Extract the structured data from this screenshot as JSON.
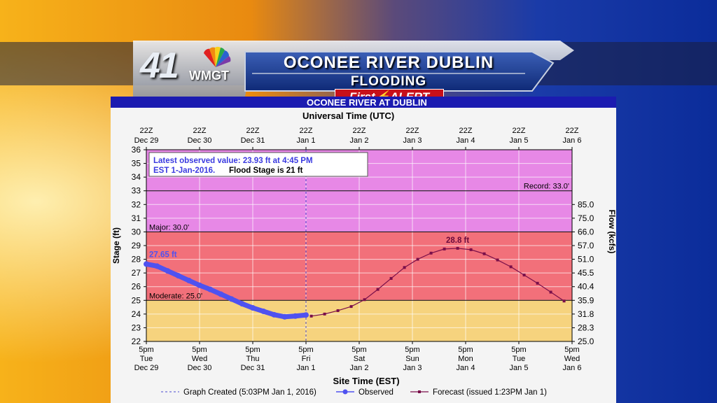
{
  "banner": {
    "channel_number": "41",
    "call_sign": "WMGT",
    "title": "OCONEE RIVER DUBLIN",
    "subtitle": "FLOODING",
    "alert_first": "First",
    "alert_word": "ALERT",
    "icon": "nbc-peacock-icon",
    "alert_color": "#c8101a"
  },
  "chart_data": {
    "type": "line",
    "title": "OCONEE RIVER AT DUBLIN",
    "top_axis_title": "Universal Time (UTC)",
    "top_ticks": [
      [
        "22Z",
        "Dec 29"
      ],
      [
        "22Z",
        "Dec 30"
      ],
      [
        "22Z",
        "Dec 31"
      ],
      [
        "22Z",
        "Jan 1"
      ],
      [
        "22Z",
        "Jan 2"
      ],
      [
        "22Z",
        "Jan 3"
      ],
      [
        "22Z",
        "Jan 4"
      ],
      [
        "22Z",
        "Jan 5"
      ],
      [
        "22Z",
        "Jan 6"
      ]
    ],
    "bottom_axis_title": "Site Time (EST)",
    "bottom_ticks": [
      [
        "5pm",
        "Tue",
        "Dec 29"
      ],
      [
        "5pm",
        "Wed",
        "Dec 30"
      ],
      [
        "5pm",
        "Thu",
        "Dec 31"
      ],
      [
        "5pm",
        "Fri",
        "Jan 1"
      ],
      [
        "5pm",
        "Sat",
        "Jan 2"
      ],
      [
        "5pm",
        "Sun",
        "Jan 3"
      ],
      [
        "5pm",
        "Mon",
        "Jan 4"
      ],
      [
        "5pm",
        "Tue",
        "Jan 5"
      ],
      [
        "5pm",
        "Wed",
        "Jan 6"
      ]
    ],
    "ylabel": "Stage (ft)",
    "ylim": [
      22,
      36
    ],
    "y_ticks": [
      22,
      23,
      24,
      25,
      26,
      27,
      28,
      29,
      30,
      31,
      32,
      33,
      34,
      35,
      36
    ],
    "y2label": "Flow (kcfs)",
    "y2_ticks": [
      {
        "stage": 22,
        "label": "25.0"
      },
      {
        "stage": 23,
        "label": "28.3"
      },
      {
        "stage": 24,
        "label": "31.8"
      },
      {
        "stage": 25,
        "label": "35.9"
      },
      {
        "stage": 26,
        "label": "40.4"
      },
      {
        "stage": 27,
        "label": "45.5"
      },
      {
        "stage": 28,
        "label": "51.0"
      },
      {
        "stage": 29,
        "label": "57.0"
      },
      {
        "stage": 30,
        "label": "66.0"
      },
      {
        "stage": 31,
        "label": "75.0"
      },
      {
        "stage": 32,
        "label": "85.0"
      }
    ],
    "x_range_days": [
      0,
      8
    ],
    "bands": [
      {
        "from": 22,
        "to": 25,
        "color": "#f6d37e"
      },
      {
        "from": 25,
        "to": 30,
        "color": "#f2707a"
      },
      {
        "from": 30,
        "to": 36,
        "color": "#e788e6"
      }
    ],
    "thresholds": [
      {
        "value": 33,
        "label": "Record: 33.0'",
        "side": "right"
      },
      {
        "value": 30,
        "label": "Major: 30.0'",
        "side": "left"
      },
      {
        "value": 25,
        "label": "Moderate: 25.0'",
        "side": "left"
      }
    ],
    "info_box": {
      "line1": "Latest observed value: 23.93 ft at 4:45 PM",
      "line2a": "EST 1-Jan-2016.",
      "line2b": "Flood Stage is 21 ft"
    },
    "created_marker_day": 3.0,
    "series": [
      {
        "name": "Observed",
        "color": "#4f52f0",
        "start_label": "27.65 ft",
        "x": [
          0.0,
          0.2,
          0.4,
          0.6,
          0.8,
          1.0,
          1.2,
          1.4,
          1.6,
          1.8,
          2.0,
          2.2,
          2.4,
          2.6,
          2.8,
          3.0
        ],
        "y": [
          27.65,
          27.5,
          27.15,
          26.8,
          26.45,
          26.1,
          25.8,
          25.45,
          25.1,
          24.75,
          24.45,
          24.2,
          23.95,
          23.8,
          23.85,
          23.93
        ]
      },
      {
        "name": "Forecast (issued 1:23PM Jan 1)",
        "color": "#7a0f4a",
        "peak_label": "28.8 ft",
        "x": [
          3.1,
          3.35,
          3.6,
          3.85,
          4.1,
          4.35,
          4.6,
          4.85,
          5.1,
          5.35,
          5.6,
          5.85,
          6.1,
          6.35,
          6.6,
          6.85,
          7.1,
          7.35,
          7.6,
          7.85
        ],
        "y": [
          23.85,
          24.0,
          24.25,
          24.55,
          25.05,
          25.8,
          26.6,
          27.4,
          28.0,
          28.45,
          28.75,
          28.8,
          28.7,
          28.4,
          27.95,
          27.45,
          26.85,
          26.25,
          25.6,
          24.95
        ]
      }
    ],
    "legend": {
      "created": "Graph Created (5:03PM Jan 1, 2016)",
      "observed": "Observed",
      "forecast": "Forecast (issued 1:23PM Jan 1)"
    },
    "grid": true,
    "legend_position": "bottom"
  }
}
